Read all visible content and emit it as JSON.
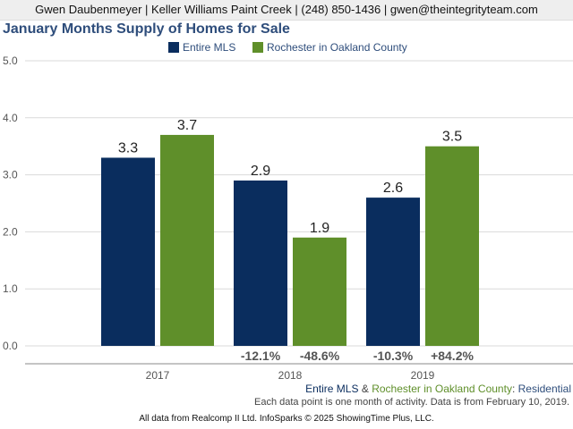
{
  "header": {
    "agent_line": "Gwen Daubenmeyer | Keller Williams Paint Creek | (248) 850-1436 | gwen@theintegrityteam.com"
  },
  "colors": {
    "entire_mls": "#0a2d5e",
    "rochester": "#5f8f2a",
    "title": "#2e4d7b",
    "axis_text": "#555555",
    "change_text": "#555555"
  },
  "chart_data": {
    "type": "bar",
    "title": "January Months Supply of Homes for Sale",
    "categories": [
      "2017",
      "2018",
      "2019"
    ],
    "series": [
      {
        "name": "Entire MLS",
        "values": [
          3.3,
          2.9,
          2.6
        ],
        "changes": [
          "",
          "-12.1%",
          "-10.3%"
        ]
      },
      {
        "name": "Rochester in Oakland County",
        "values": [
          3.7,
          1.9,
          3.5
        ],
        "changes": [
          "",
          "-48.6%",
          "+84.2%"
        ]
      }
    ],
    "ylim": [
      0,
      5
    ],
    "yticks": [
      "0.0",
      "1.0",
      "2.0",
      "3.0",
      "4.0",
      "5.0"
    ],
    "xlabel": "",
    "ylabel": "",
    "grid": true,
    "legend": "top-center"
  },
  "footer": {
    "series_a": "Entire MLS",
    "amp": "&",
    "series_b": "Rochester in Oakland County",
    "colon": ":",
    "category": "Residential",
    "note": "Each data point is one month of activity. Data is from February 10, 2019.",
    "credit": "All data from Realcomp II Ltd. InfoSparks © 2025 ShowingTime Plus, LLC."
  }
}
